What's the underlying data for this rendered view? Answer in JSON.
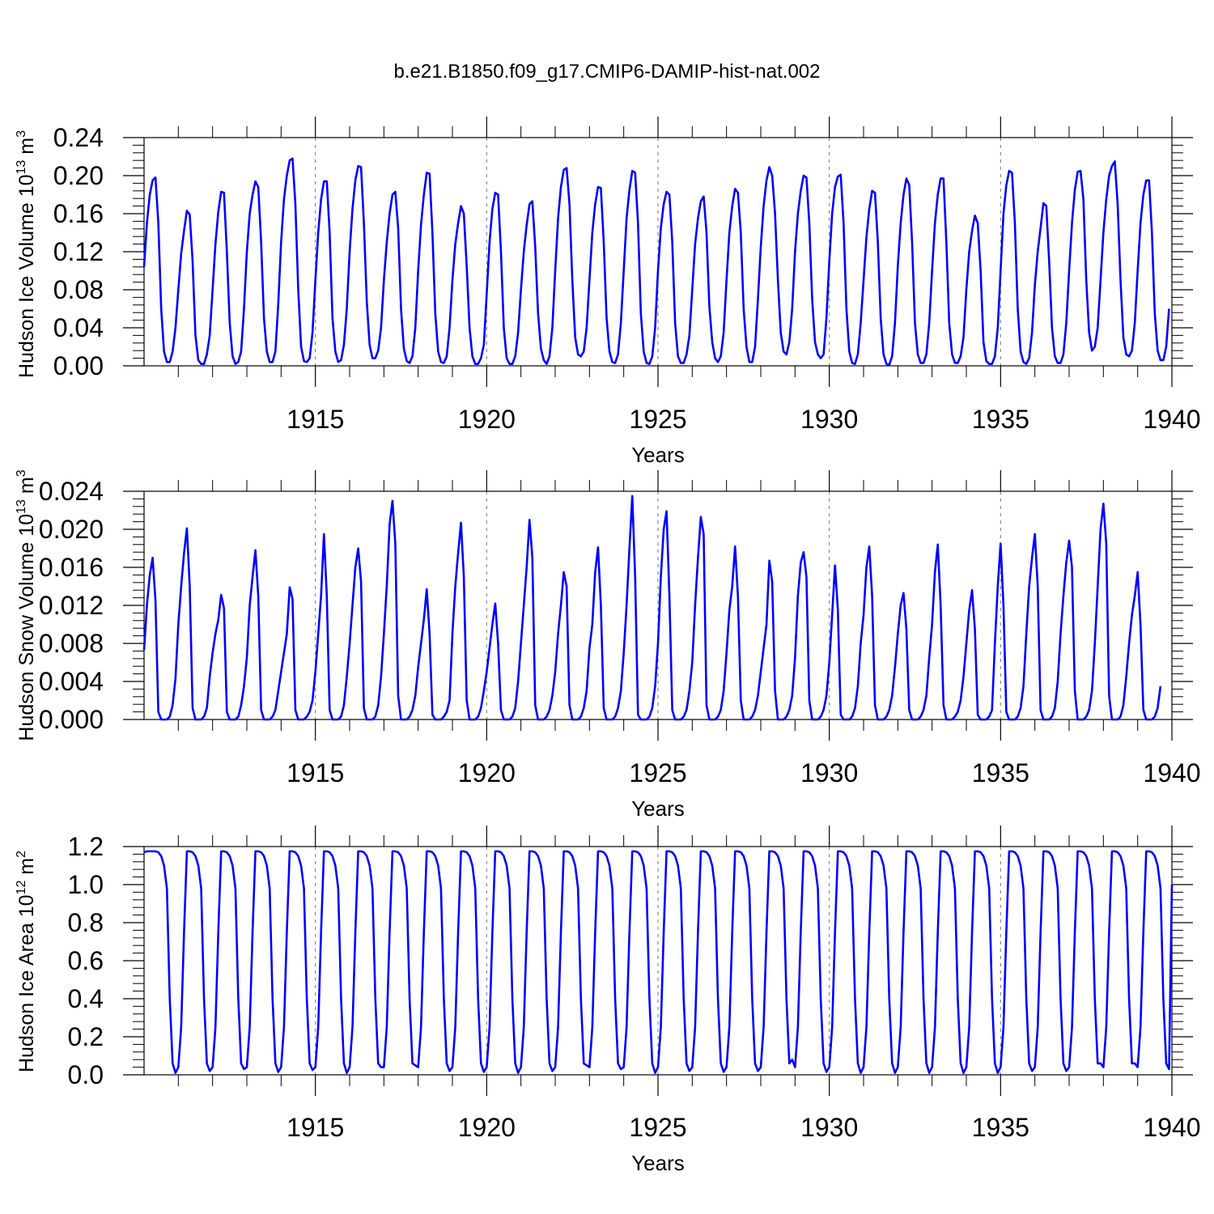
{
  "title": "b.e21.B1850.f09_g17.CMIP6-DAMIP-hist-nat.002",
  "colors": {
    "line": "#0000ff",
    "axis": "#000000",
    "refline": "#888888"
  },
  "chart_data": [
    {
      "type": "line",
      "ylabel": "Hudson Ice Volume 10",
      "ylabel_exp": "13",
      "ylabel_unit": " m",
      "ylabel_unit_exp": "3",
      "xlabel": "Years",
      "xlim": [
        1910,
        1940
      ],
      "ylim": [
        0,
        0.24
      ],
      "yticks": [
        "0.00",
        "0.04",
        "0.08",
        "0.12",
        "0.16",
        "0.20",
        "0.24"
      ],
      "yticks_values": [
        0,
        0.04,
        0.08,
        0.12,
        0.16,
        0.2,
        0.24
      ],
      "xticks": [
        "1915",
        "1920",
        "1925",
        "1930",
        "1935",
        "1940"
      ],
      "xticks_values": [
        1915,
        1920,
        1925,
        1930,
        1935,
        1940
      ],
      "series": [
        {
          "name": "Hudson Ice Volume",
          "start": 1910.0,
          "step": 0.08333333,
          "values": [
            0.104,
            0.15,
            0.18,
            0.195,
            0.198,
            0.15,
            0.06,
            0.015,
            0.004,
            0.004,
            0.015,
            0.04,
            0.08,
            0.118,
            0.142,
            0.163,
            0.159,
            0.11,
            0.032,
            0.006,
            0.002,
            0.002,
            0.012,
            0.032,
            0.08,
            0.128,
            0.162,
            0.183,
            0.182,
            0.12,
            0.045,
            0.01,
            0.002,
            0.004,
            0.015,
            0.06,
            0.12,
            0.16,
            0.18,
            0.194,
            0.188,
            0.13,
            0.05,
            0.015,
            0.004,
            0.004,
            0.015,
            0.065,
            0.13,
            0.175,
            0.2,
            0.216,
            0.218,
            0.17,
            0.08,
            0.02,
            0.005,
            0.004,
            0.008,
            0.035,
            0.09,
            0.14,
            0.175,
            0.194,
            0.194,
            0.14,
            0.05,
            0.015,
            0.004,
            0.006,
            0.022,
            0.06,
            0.12,
            0.165,
            0.195,
            0.21,
            0.209,
            0.15,
            0.068,
            0.022,
            0.008,
            0.008,
            0.016,
            0.04,
            0.09,
            0.13,
            0.16,
            0.18,
            0.183,
            0.145,
            0.06,
            0.018,
            0.005,
            0.003,
            0.01,
            0.04,
            0.1,
            0.148,
            0.18,
            0.203,
            0.202,
            0.14,
            0.055,
            0.015,
            0.004,
            0.003,
            0.01,
            0.04,
            0.09,
            0.128,
            0.15,
            0.168,
            0.16,
            0.105,
            0.04,
            0.01,
            0.002,
            0.002,
            0.008,
            0.022,
            0.075,
            0.13,
            0.165,
            0.182,
            0.18,
            0.12,
            0.04,
            0.008,
            0.002,
            0.002,
            0.01,
            0.035,
            0.08,
            0.12,
            0.148,
            0.17,
            0.173,
            0.125,
            0.055,
            0.018,
            0.006,
            0.002,
            0.01,
            0.04,
            0.1,
            0.155,
            0.188,
            0.206,
            0.208,
            0.17,
            0.09,
            0.03,
            0.012,
            0.01,
            0.015,
            0.04,
            0.09,
            0.14,
            0.17,
            0.188,
            0.187,
            0.13,
            0.05,
            0.015,
            0.004,
            0.003,
            0.012,
            0.045,
            0.1,
            0.155,
            0.185,
            0.205,
            0.203,
            0.15,
            0.055,
            0.015,
            0.003,
            0.002,
            0.01,
            0.04,
            0.1,
            0.145,
            0.17,
            0.183,
            0.18,
            0.13,
            0.045,
            0.01,
            0.003,
            0.003,
            0.012,
            0.032,
            0.08,
            0.128,
            0.155,
            0.173,
            0.178,
            0.14,
            0.062,
            0.025,
            0.008,
            0.004,
            0.01,
            0.035,
            0.09,
            0.14,
            0.168,
            0.186,
            0.182,
            0.14,
            0.06,
            0.02,
            0.004,
            0.004,
            0.02,
            0.07,
            0.125,
            0.168,
            0.195,
            0.209,
            0.2,
            0.16,
            0.09,
            0.035,
            0.015,
            0.012,
            0.025,
            0.06,
            0.12,
            0.16,
            0.184,
            0.2,
            0.198,
            0.15,
            0.07,
            0.025,
            0.012,
            0.008,
            0.012,
            0.05,
            0.11,
            0.16,
            0.188,
            0.199,
            0.201,
            0.15,
            0.06,
            0.015,
            0.003,
            0.002,
            0.012,
            0.045,
            0.09,
            0.135,
            0.165,
            0.184,
            0.182,
            0.13,
            0.05,
            0.012,
            0.002,
            0.001,
            0.01,
            0.045,
            0.105,
            0.15,
            0.18,
            0.197,
            0.19,
            0.13,
            0.045,
            0.012,
            0.003,
            0.003,
            0.012,
            0.045,
            0.1,
            0.15,
            0.18,
            0.197,
            0.197,
            0.13,
            0.045,
            0.012,
            0.003,
            0.003,
            0.01,
            0.03,
            0.08,
            0.12,
            0.142,
            0.158,
            0.15,
            0.1,
            0.025,
            0.005,
            0.002,
            0.002,
            0.01,
            0.04,
            0.1,
            0.16,
            0.19,
            0.205,
            0.203,
            0.15,
            0.06,
            0.015,
            0.004,
            0.002,
            0.008,
            0.035,
            0.085,
            0.12,
            0.145,
            0.171,
            0.168,
            0.11,
            0.04,
            0.01,
            0.003,
            0.003,
            0.012,
            0.045,
            0.1,
            0.15,
            0.185,
            0.204,
            0.205,
            0.175,
            0.09,
            0.035,
            0.016,
            0.02,
            0.04,
            0.09,
            0.14,
            0.175,
            0.2,
            0.21,
            0.215,
            0.17,
            0.09,
            0.03,
            0.012,
            0.01,
            0.016,
            0.045,
            0.1,
            0.15,
            0.18,
            0.195,
            0.195,
            0.14,
            0.055,
            0.016,
            0.006,
            0.006,
            0.02,
            0.06
          ]
        }
      ]
    },
    {
      "type": "line",
      "ylabel": "Hudson Snow Volume 10",
      "ylabel_exp": "13",
      "ylabel_unit": " m",
      "ylabel_unit_exp": "3",
      "xlabel": "Years",
      "xlim": [
        1910,
        1940
      ],
      "ylim": [
        0,
        0.024
      ],
      "yticks": [
        "0.000",
        "0.004",
        "0.008",
        "0.012",
        "0.016",
        "0.020",
        "0.024"
      ],
      "yticks_values": [
        0,
        0.004,
        0.008,
        0.012,
        0.016,
        0.02,
        0.024
      ],
      "xticks": [
        "1915",
        "1920",
        "1925",
        "1930",
        "1935",
        "1940"
      ],
      "xticks_values": [
        1915,
        1920,
        1925,
        1930,
        1935,
        1940
      ],
      "series": [
        {
          "name": "Hudson Snow Volume",
          "start": 1910.0,
          "step": 0.08333333,
          "values": [
            0.0073,
            0.012,
            0.0152,
            0.017,
            0.0125,
            0.0008,
            0.0,
            0.0,
            0.0,
            0.0003,
            0.0015,
            0.0043,
            0.01,
            0.014,
            0.0175,
            0.0201,
            0.014,
            0.0012,
            0.0,
            0.0,
            0.0,
            0.0003,
            0.0012,
            0.0045,
            0.007,
            0.009,
            0.0105,
            0.0131,
            0.0117,
            0.0008,
            0.0,
            0.0,
            0.0,
            0.0003,
            0.0015,
            0.0035,
            0.0065,
            0.012,
            0.015,
            0.0178,
            0.013,
            0.001,
            0.0,
            0.0,
            0.0,
            0.0003,
            0.001,
            0.003,
            0.005,
            0.007,
            0.009,
            0.0139,
            0.0127,
            0.001,
            0.0,
            0.0,
            0.0,
            0.0003,
            0.0008,
            0.002,
            0.005,
            0.009,
            0.013,
            0.0195,
            0.013,
            0.001,
            0.0,
            0.0,
            0.0,
            0.0003,
            0.0015,
            0.0045,
            0.008,
            0.012,
            0.016,
            0.018,
            0.0145,
            0.0012,
            0.0,
            0.0,
            0.0,
            0.0003,
            0.0015,
            0.0045,
            0.009,
            0.014,
            0.0205,
            0.023,
            0.0185,
            0.0025,
            0.0,
            0.0,
            0.0,
            0.0003,
            0.001,
            0.0025,
            0.0055,
            0.008,
            0.0105,
            0.0137,
            0.009,
            0.0005,
            0.0,
            0.0,
            0.0,
            0.0003,
            0.0008,
            0.002,
            0.009,
            0.014,
            0.0175,
            0.0207,
            0.015,
            0.002,
            0.0,
            0.0,
            0.0,
            0.0003,
            0.0012,
            0.003,
            0.005,
            0.0075,
            0.01,
            0.0122,
            0.008,
            0.001,
            0.0,
            0.0,
            0.0,
            0.0003,
            0.0012,
            0.004,
            0.008,
            0.012,
            0.016,
            0.021,
            0.017,
            0.0015,
            0.0,
            0.0,
            0.0,
            0.0003,
            0.001,
            0.0025,
            0.005,
            0.009,
            0.012,
            0.0155,
            0.014,
            0.0015,
            0.0,
            0.0,
            0.0,
            0.0003,
            0.0012,
            0.003,
            0.0075,
            0.01,
            0.0155,
            0.0181,
            0.012,
            0.0012,
            0.0,
            0.0,
            0.0,
            0.0003,
            0.0012,
            0.003,
            0.007,
            0.012,
            0.018,
            0.0235,
            0.015,
            0.0005,
            0.0,
            0.0,
            0.0,
            0.0003,
            0.0012,
            0.0035,
            0.008,
            0.015,
            0.02,
            0.0219,
            0.013,
            0.001,
            0.0,
            0.0,
            0.0,
            0.0003,
            0.001,
            0.003,
            0.006,
            0.012,
            0.017,
            0.0213,
            0.0195,
            0.0015,
            0.0,
            0.0,
            0.0,
            0.0003,
            0.001,
            0.003,
            0.007,
            0.0115,
            0.014,
            0.0182,
            0.013,
            0.002,
            0.0,
            0.0,
            0.0,
            0.0003,
            0.001,
            0.0025,
            0.005,
            0.0075,
            0.01,
            0.0167,
            0.0145,
            0.003,
            0.0,
            0.0,
            0.0,
            0.0003,
            0.001,
            0.0025,
            0.0065,
            0.013,
            0.0165,
            0.0176,
            0.015,
            0.002,
            0.0,
            0.0,
            0.0,
            0.0003,
            0.001,
            0.0025,
            0.006,
            0.011,
            0.0162,
            0.0115,
            0.0005,
            0.0,
            0.0,
            0.0,
            0.0003,
            0.0012,
            0.0035,
            0.008,
            0.011,
            0.016,
            0.0182,
            0.013,
            0.0015,
            0.0,
            0.0,
            0.0,
            0.0003,
            0.001,
            0.0025,
            0.0055,
            0.009,
            0.012,
            0.0133,
            0.0095,
            0.001,
            0.0,
            0.0,
            0.0,
            0.0003,
            0.001,
            0.0025,
            0.0065,
            0.01,
            0.0155,
            0.0184,
            0.012,
            0.0015,
            0.0,
            0.0,
            0.0,
            0.0003,
            0.0008,
            0.002,
            0.0045,
            0.008,
            0.0115,
            0.0136,
            0.0095,
            0.0005,
            0.0,
            0.0,
            0.0,
            0.0003,
            0.001,
            0.008,
            0.014,
            0.0185,
            0.012,
            0.0008,
            0.0,
            0.0,
            0.0,
            0.0003,
            0.0012,
            0.0035,
            0.009,
            0.014,
            0.017,
            0.0195,
            0.014,
            0.001,
            0.0,
            0.0,
            0.0,
            0.0003,
            0.0012,
            0.004,
            0.009,
            0.013,
            0.0165,
            0.0188,
            0.016,
            0.003,
            0.0,
            0.0,
            0.0,
            0.0003,
            0.001,
            0.003,
            0.008,
            0.014,
            0.02,
            0.0227,
            0.0185,
            0.0025,
            0.0,
            0.0,
            0.0,
            0.0003,
            0.0015,
            0.0045,
            0.008,
            0.011,
            0.013,
            0.0155,
            0.01,
            0.001,
            0.0,
            0.0,
            0.0,
            0.0003,
            0.0012,
            0.0035
          ]
        }
      ]
    },
    {
      "type": "line",
      "ylabel": "Hudson Ice Area 10",
      "ylabel_exp": "12",
      "ylabel_unit": " m",
      "ylabel_unit_exp": "2",
      "xlabel": "Years",
      "xlim": [
        1910,
        1940
      ],
      "ylim": [
        0,
        1.2
      ],
      "yticks": [
        "0.0",
        "0.2",
        "0.4",
        "0.6",
        "0.8",
        "1.0",
        "1.2"
      ],
      "yticks_values": [
        0,
        0.2,
        0.4,
        0.6,
        0.8,
        1.0,
        1.2
      ],
      "xticks": [
        "1915",
        "1920",
        "1925",
        "1930",
        "1935",
        "1940"
      ],
      "xticks_values": [
        1915,
        1920,
        1925,
        1930,
        1935,
        1940
      ],
      "series": [
        {
          "name": "Hudson Ice Area",
          "start": 1910.0,
          "pattern_start": 1910.15,
          "step": 0.08333333,
          "yearly_cycle": [
            1.175,
            1.175,
            1.17,
            1.15,
            1.1,
            0.98,
            0.4,
            0.06,
            0.01,
            0.04,
            0.25,
            0.75
          ],
          "first_values": [
            1.17,
            1.175,
            1.175
          ],
          "last_value": 1.0,
          "summer_min": [
            0.01,
            0.02,
            0.03,
            0.015,
            0.025,
            0.01,
            0.04,
            0.05,
            0.02,
            0.015,
            0.01,
            0.02,
            0.05,
            0.03,
            0.01,
            0.02,
            0.015,
            0.02,
            0.08,
            0.015,
            0.01,
            0.01,
            0.01,
            0.01,
            0.01,
            0.02,
            0.02,
            0.06,
            0.06,
            0.03
          ]
        }
      ]
    }
  ]
}
